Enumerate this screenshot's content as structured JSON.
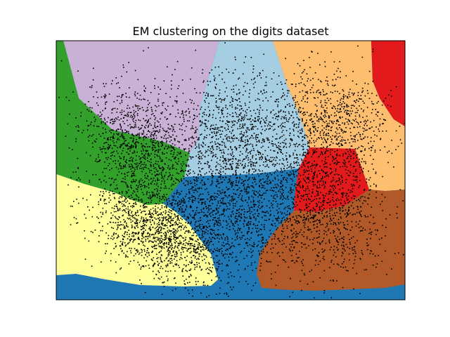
{
  "chart_data": {
    "type": "scatter",
    "title": "EM clustering on the digits dataset",
    "xlabel": "",
    "ylabel": "",
    "axes_ticks": "none",
    "grid": false,
    "legend": "none",
    "background": "decision-region map",
    "region_colors": {
      "lavender": "#c9b1d6",
      "light_blue": "#a6cee3",
      "light_orange": "#fdbf6f",
      "red": "#e31a1c",
      "green": "#33a02c",
      "yellow": "#ffff99",
      "blue": "#1f78b4",
      "brown": "#b15928"
    },
    "point_color": "#000000",
    "point_clusters": [
      {
        "region": "green/lavender boundary (upper-left)",
        "count": 1100
      },
      {
        "region": "yellow lower-left",
        "count": 1200
      },
      {
        "region": "light blue upper-middle",
        "count": 1000
      },
      {
        "region": "blue center",
        "count": 1300
      },
      {
        "region": "brown/red right",
        "count": 1000
      },
      {
        "region": "light orange upper-right",
        "count": 800
      }
    ]
  }
}
